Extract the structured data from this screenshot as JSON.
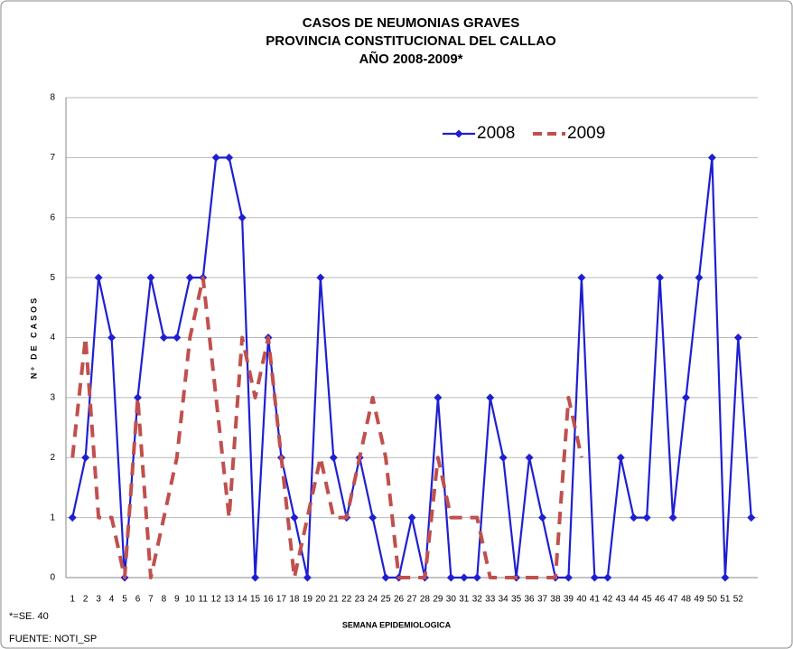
{
  "chart_data": {
    "type": "line",
    "title": [
      "CASOS DE NEUMONIAS GRAVES",
      "PROVINCIA CONSTITUCIONAL DEL CALLAO",
      "AÑO 2008-2009*"
    ],
    "y_label": "Nº DE CASOS",
    "x_label": "SEMANA EPIDEMIOLOGICA",
    "footnotes": [
      "*=SE. 40",
      "FUENTE: NOTI_SP"
    ],
    "categories": [
      "1",
      "2",
      "3",
      "4",
      "5",
      "6",
      "7",
      "8",
      "9",
      "10",
      "11",
      "12",
      "13",
      "14",
      "15",
      "16",
      "17",
      "18",
      "19",
      "20",
      "21",
      "22",
      "23",
      "24",
      "25",
      "26",
      "27",
      "28",
      "29",
      "30",
      "31",
      "32",
      "33",
      "34",
      "35",
      "36",
      "37",
      "38",
      "39",
      "40",
      "41",
      "42",
      "43",
      "44",
      "45",
      "46",
      "47",
      "48",
      "49",
      "50",
      "51",
      "52",
      null
    ],
    "series": [
      {
        "name": "2008",
        "color": "#1f1fd1",
        "style": "solid",
        "values": [
          1,
          2,
          5,
          4,
          0,
          3,
          5,
          4,
          4,
          5,
          5,
          7,
          7,
          6,
          0,
          4,
          2,
          1,
          0,
          5,
          2,
          1,
          2,
          1,
          0,
          0,
          1,
          0,
          3,
          0,
          0,
          0,
          3,
          2,
          0,
          2,
          1,
          0,
          0,
          5,
          0,
          0,
          2,
          1,
          1,
          5,
          1,
          3,
          5,
          7,
          0,
          4,
          1
        ]
      },
      {
        "name": "2009",
        "color": "#c0504d",
        "style": "dashed",
        "values": [
          2,
          4,
          1,
          1,
          0,
          3,
          0,
          1,
          2,
          4,
          5,
          3,
          1,
          4,
          3,
          4,
          2,
          0,
          1,
          2,
          1,
          1,
          2,
          3,
          2,
          0,
          0,
          0,
          2,
          1,
          1,
          1,
          0,
          0,
          0,
          0,
          0,
          0,
          3,
          2,
          null,
          null,
          null,
          null,
          null,
          null,
          null,
          null,
          null,
          null,
          null,
          null,
          null
        ]
      }
    ],
    "ylim": [
      0,
      8
    ],
    "yticks": [
      0,
      1,
      2,
      3,
      4,
      5,
      6,
      7,
      8
    ],
    "grid": true,
    "legend": "top-right"
  }
}
